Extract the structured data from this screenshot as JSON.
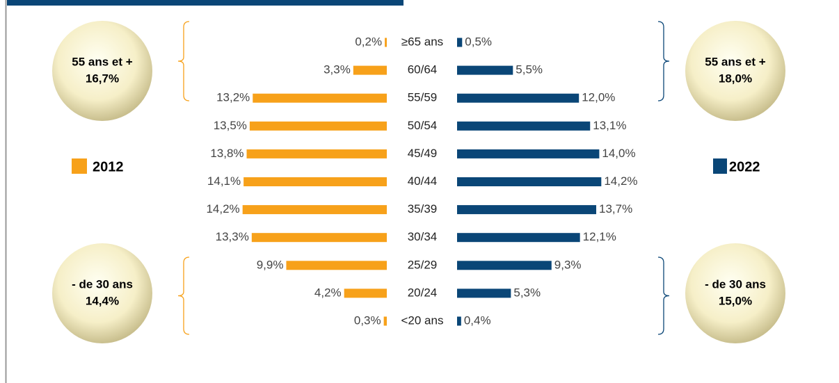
{
  "chart_data": {
    "type": "bar",
    "orientation": "horizontal",
    "categories": [
      "≥65 ans",
      "60/64",
      "55/59",
      "50/54",
      "45/49",
      "40/44",
      "35/39",
      "30/34",
      "25/29",
      "20/24",
      "<20 ans"
    ],
    "series": [
      {
        "name": "2012",
        "color": "#f7a11a",
        "side": "left",
        "values": [
          0.2,
          3.3,
          13.2,
          13.5,
          13.8,
          14.1,
          14.2,
          13.3,
          9.9,
          4.2,
          0.3
        ],
        "value_labels": [
          "0,2%",
          "3,3%",
          "13,2%",
          "13,5%",
          "13,8%",
          "14,1%",
          "14,2%",
          "13,3%",
          "9,9%",
          "4,2%",
          "0,3%"
        ]
      },
      {
        "name": "2022",
        "color": "#0a4677",
        "side": "right",
        "values": [
          0.5,
          5.5,
          12.0,
          13.1,
          14.0,
          14.2,
          13.7,
          12.1,
          9.3,
          5.3,
          0.4
        ],
        "value_labels": [
          "0,5%",
          "5,5%",
          "12,0%",
          "13,1%",
          "14,0%",
          "14,2%",
          "13,7%",
          "12,1%",
          "9,3%",
          "5,3%",
          "0,4%"
        ]
      }
    ],
    "annotations": [
      {
        "text": "55 ans et +",
        "value": 16.7,
        "value_label": "16,7%",
        "series": 0,
        "group": "top"
      },
      {
        "text": "55 ans et +",
        "value": 18.0,
        "value_label": "18,0%",
        "series": 1,
        "group": "top"
      },
      {
        "text": "- de 30 ans",
        "value": 14.4,
        "value_label": "14,4%",
        "series": 0,
        "group": "bottom"
      },
      {
        "text": "- de 30 ans",
        "value": 15.0,
        "value_label": "15,0%",
        "series": 1,
        "group": "bottom"
      }
    ]
  }
}
